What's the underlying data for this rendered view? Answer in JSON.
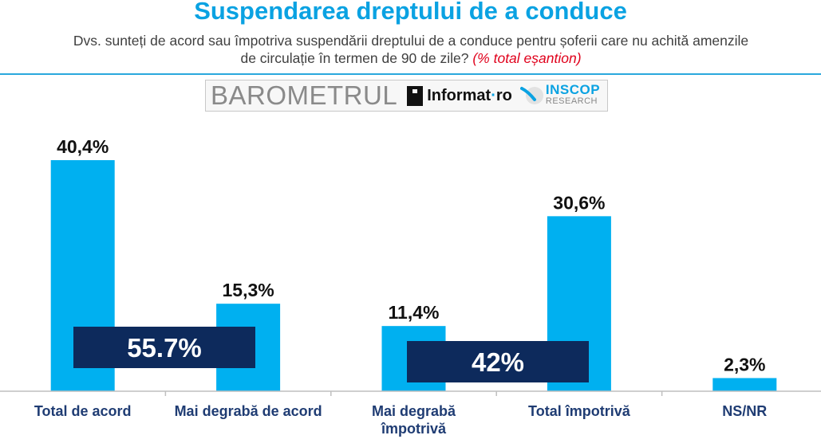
{
  "header": {
    "title": "Suspendarea dreptului de a conduce",
    "question_line1": "Dvs. sunteți de acord sau împotriva suspendării dreptului de a conduce pentru șoferii care nu achită amenzile",
    "question_line2": "de circulație în termen de 90 de zile?",
    "note": "(% total eșantion)"
  },
  "logo": {
    "barometrul": "BAROMETRUL",
    "informat_name": "Informat",
    "informat_dot": "·",
    "informat_tld": "ro",
    "inscop": "INSCOP",
    "research": "RESEARCH"
  },
  "colors": {
    "bar": "#00b0f0",
    "summary_box": "#0d2a5c",
    "title": "#0aa2e2",
    "category_label": "#1f3c73"
  },
  "chart_data": {
    "type": "bar",
    "title": "Suspendarea dreptului de a conduce",
    "categories": [
      [
        "Total de acord"
      ],
      [
        "Mai degrabă de acord"
      ],
      [
        "Mai degrabă",
        "împotrivă"
      ],
      [
        "Total împotrivă"
      ],
      [
        "NS/NR"
      ]
    ],
    "values": [
      40.4,
      15.3,
      11.4,
      30.6,
      2.3
    ],
    "value_labels": [
      "40,4%",
      "15,3%",
      "11,4%",
      "30,6%",
      "2,3%"
    ],
    "ylim": [
      0,
      40.4
    ],
    "grid": false,
    "annotations": [
      {
        "text": "55.7%",
        "spans_categories": [
          0,
          1
        ],
        "value": 55.7
      },
      {
        "text": "42%",
        "spans_categories": [
          2,
          3
        ],
        "value": 42
      }
    ]
  }
}
